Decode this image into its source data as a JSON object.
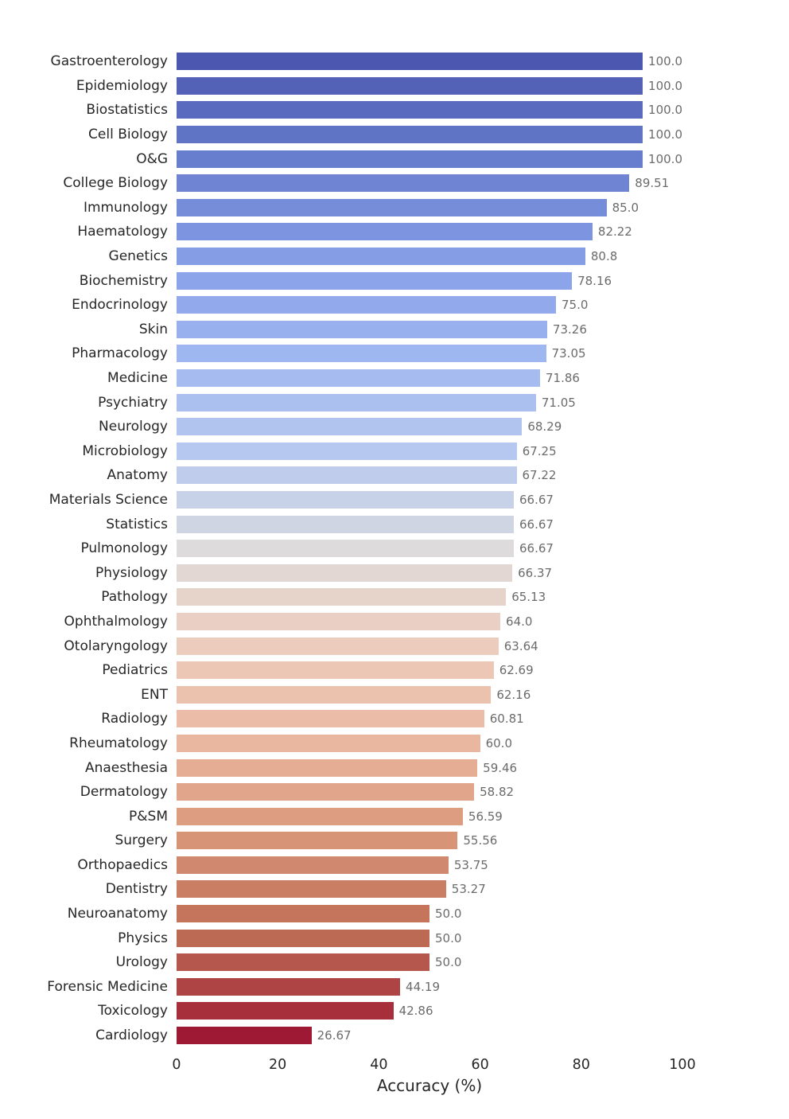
{
  "chart_data": {
    "type": "bar",
    "orientation": "horizontal",
    "title": "",
    "xlabel": "Accuracy (%)",
    "ylabel": "",
    "xlim": [
      0,
      100
    ],
    "x_ticks": [
      "0",
      "20",
      "40",
      "60",
      "80",
      "100"
    ],
    "grid": false,
    "legend": false,
    "value_labels_shown": true,
    "category_label_color": "#262626",
    "value_label_color": "#6b6b6b",
    "background_color": "#ffffff",
    "colormap": "coolwarm (desaturated), blue high to red low",
    "categories": [
      "Gastroenterology",
      "Epidemiology",
      "Biostatistics",
      "Cell Biology",
      "O&G",
      "College Biology",
      "Immunology",
      "Haematology",
      "Genetics",
      "Biochemistry",
      "Endocrinology",
      "Skin",
      "Pharmacology",
      "Medicine",
      "Psychiatry",
      "Neurology",
      "Microbiology",
      "Anatomy",
      "Materials Science",
      "Statistics",
      "Pulmonology",
      "Physiology",
      "Pathology",
      "Ophthalmology",
      "Otolaryngology",
      "Pediatrics",
      "ENT",
      "Radiology",
      "Rheumatology",
      "Anaesthesia",
      "Dermatology",
      "P&SM",
      "Surgery",
      "Orthopaedics",
      "Dentistry",
      "Neuroanatomy",
      "Physics",
      "Urology",
      "Forensic Medicine",
      "Toxicology",
      "Cardiology"
    ],
    "values": [
      "100.0",
      "100.0",
      "100.0",
      "100.0",
      "100.0",
      "89.51",
      "85.0",
      "82.22",
      "80.8",
      "78.16",
      "75.0",
      "73.26",
      "73.05",
      "71.86",
      "71.05",
      "68.29",
      "67.25",
      "67.22",
      "66.67",
      "66.67",
      "66.67",
      "66.37",
      "65.13",
      "64.0",
      "63.64",
      "62.69",
      "62.16",
      "60.81",
      "60.0",
      "59.46",
      "58.82",
      "56.59",
      "55.56",
      "53.75",
      "53.27",
      "50.0",
      "50.0",
      "50.0",
      "44.19",
      "42.86",
      "26.67"
    ],
    "bar_colors": [
      "#4C58AF",
      "#5362B7",
      "#5A6BBF",
      "#6074C6",
      "#677ECE",
      "#6F85D4",
      "#768ED9",
      "#7D95E0",
      "#849DE5",
      "#8CA4E9",
      "#92AAEB",
      "#98B0ED",
      "#9FB7F0",
      "#A6BBF0",
      "#ACC0F0",
      "#B1C4F0",
      "#B7C8F0",
      "#BFCCEC",
      "#C7D1E8",
      "#D0D5E3",
      "#DDDBDB",
      "#E2D7D2",
      "#E6D4CB",
      "#EAD0C4",
      "#ECCDBD",
      "#ECC7B5",
      "#EBC2AE",
      "#EBBCA7",
      "#E9B69F",
      "#E5AE94",
      "#E0A58A",
      "#DC9D80",
      "#D79476",
      "#D0896E",
      "#CA7F65",
      "#C4755B",
      "#BC6A53",
      "#B6574D",
      "#AF4445",
      "#A72F3C",
      "#9E1A34"
    ]
  }
}
